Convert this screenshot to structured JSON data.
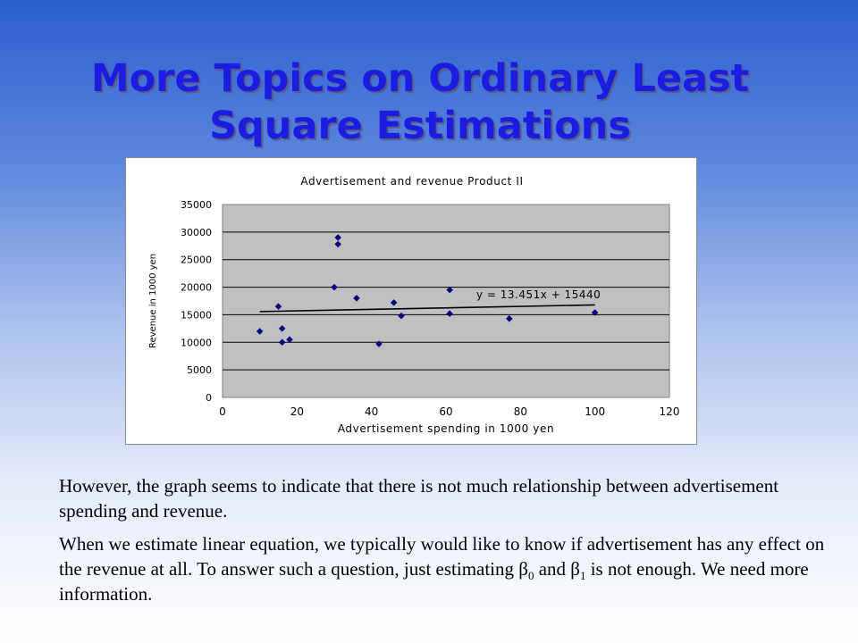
{
  "slide": {
    "title_line1": "More Topics on Ordinary Least",
    "title_line2": "Square Estimations",
    "paragraph1": "However, the graph seems to indicate that there is not much relationship between advertisement spending and revenue.",
    "paragraph2_part1": "When we estimate linear equation, we typically would like to know if advertisement has any effect on the revenue at all. To answer such a question, just estimating ",
    "beta": "β",
    "sub0": "0",
    "and": " and ",
    "sub1": "1",
    "paragraph2_part2": " is not enough.  We need more information."
  },
  "chart_data": {
    "type": "scatter",
    "title": "Advertisement and revenue Product II",
    "xlabel": "Advertisement spending in 1000 yen",
    "ylabel": "Revenue in 1000 yen",
    "xlim": [
      0,
      120
    ],
    "ylim": [
      0,
      35000
    ],
    "x_ticks": [
      0,
      20,
      40,
      60,
      80,
      100,
      120
    ],
    "y_ticks": [
      0,
      5000,
      10000,
      15000,
      20000,
      25000,
      30000,
      35000
    ],
    "grid": "horizontal",
    "plot_background": "#c0c0c0",
    "marker_color": "#000080",
    "points": [
      {
        "x": 10,
        "y": 12000
      },
      {
        "x": 15,
        "y": 16500
      },
      {
        "x": 16,
        "y": 12500
      },
      {
        "x": 16,
        "y": 10000
      },
      {
        "x": 18,
        "y": 10500
      },
      {
        "x": 30,
        "y": 20000
      },
      {
        "x": 31,
        "y": 29000
      },
      {
        "x": 31,
        "y": 27800
      },
      {
        "x": 36,
        "y": 18000
      },
      {
        "x": 42,
        "y": 9700
      },
      {
        "x": 46,
        "y": 17200
      },
      {
        "x": 48,
        "y": 14800
      },
      {
        "x": 61,
        "y": 19500
      },
      {
        "x": 61,
        "y": 15200
      },
      {
        "x": 77,
        "y": 14300
      },
      {
        "x": 100,
        "y": 15400
      }
    ],
    "trendline": {
      "slope": 13.451,
      "intercept": 15440,
      "x_range": [
        10,
        100
      ]
    },
    "equation_label": "y = 13.451x + 15440"
  }
}
